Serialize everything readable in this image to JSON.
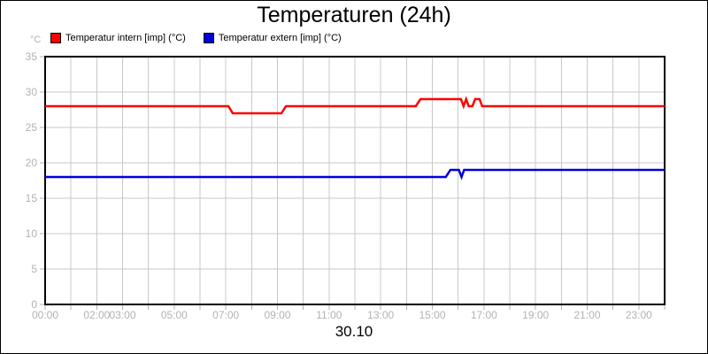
{
  "chart_data": {
    "type": "line",
    "title": "Temperaturen (24h)",
    "x_axis_label": "30.10",
    "y_unit": "°C",
    "x_range_hours": [
      0,
      24
    ],
    "x_tick_interval_hours": 1,
    "ylim": [
      0,
      35
    ],
    "y_ticks": [
      0,
      5,
      10,
      15,
      20,
      25,
      30,
      35
    ],
    "x_labels": [
      {
        "hour": 0,
        "label": "00:00"
      },
      {
        "hour": 2,
        "label": "02:00"
      },
      {
        "hour": 3,
        "label": "03:00"
      },
      {
        "hour": 5,
        "label": "05:00"
      },
      {
        "hour": 7,
        "label": "07:00"
      },
      {
        "hour": 9,
        "label": "09:00"
      },
      {
        "hour": 11,
        "label": "11:00"
      },
      {
        "hour": 13,
        "label": "13:00"
      },
      {
        "hour": 15,
        "label": "15:00"
      },
      {
        "hour": 17,
        "label": "17:00"
      },
      {
        "hour": 19,
        "label": "19:00"
      },
      {
        "hour": 21,
        "label": "21:00"
      },
      {
        "hour": 23,
        "label": "23:00"
      }
    ],
    "grid_on": true,
    "legend_position": "top-left",
    "colors": {
      "grid": "#c8c8c8",
      "axis_text": "#b2b2b2",
      "tick": "#b2b2b2",
      "plot_border": "#000000"
    },
    "series": [
      {
        "name": "Temperatur intern [imp] (°C)",
        "color": "#ff0000",
        "points": [
          [
            0,
            28
          ],
          [
            7.1,
            28
          ],
          [
            7.27,
            27
          ],
          [
            9.15,
            27
          ],
          [
            9.33,
            28
          ],
          [
            14.36,
            28
          ],
          [
            14.54,
            29
          ],
          [
            16.11,
            29
          ],
          [
            16.21,
            28
          ],
          [
            16.31,
            29
          ],
          [
            16.41,
            28
          ],
          [
            16.55,
            28
          ],
          [
            16.66,
            29
          ],
          [
            16.83,
            29
          ],
          [
            16.93,
            28
          ],
          [
            24,
            28
          ]
        ]
      },
      {
        "name": "Temperatur extern [imp] (°C)",
        "color": "#0000dd",
        "points": [
          [
            0,
            18
          ],
          [
            15.52,
            18
          ],
          [
            15.7,
            19
          ],
          [
            16.03,
            19
          ],
          [
            16.13,
            18
          ],
          [
            16.23,
            19
          ],
          [
            24,
            19
          ]
        ]
      }
    ]
  }
}
